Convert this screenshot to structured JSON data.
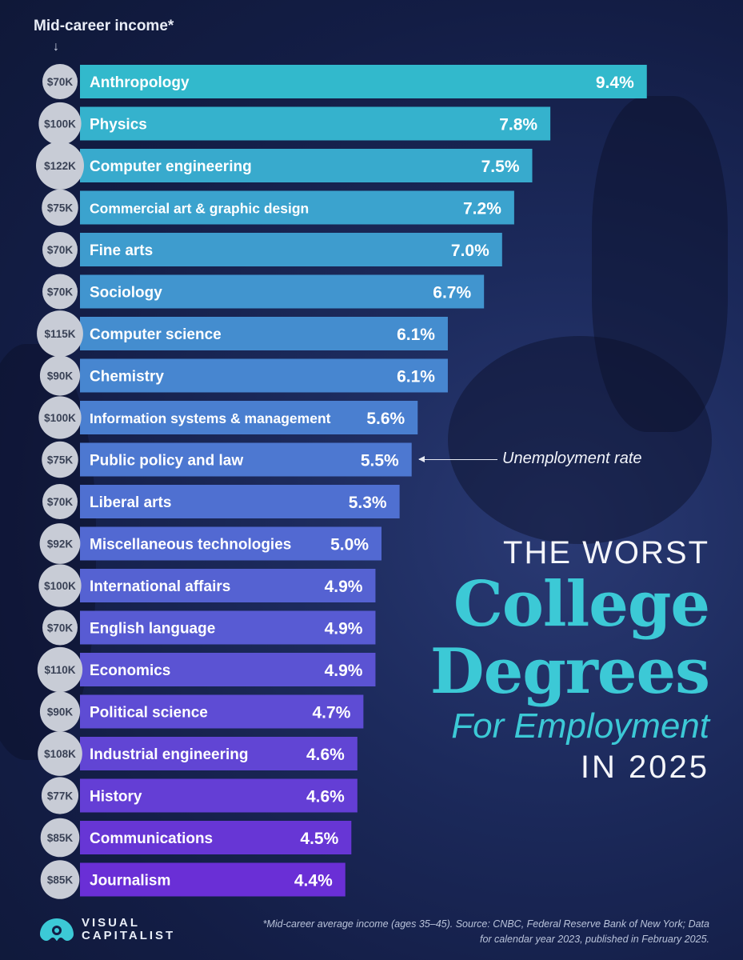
{
  "income_header": "Mid-career income*",
  "income_arrow": "↓",
  "annotation": "Unemployment rate",
  "title": {
    "line1": "THE WORST",
    "line2": "College",
    "line3": "Degrees",
    "line4": "For Employment",
    "line5": "IN 2025"
  },
  "logo": {
    "line1": "VISUAL",
    "line2": "CAPITALIST",
    "icon": "visual-capitalist-logo"
  },
  "footnote": "*Mid-career average income (ages 35–45). Source: CNBC, Federal Reserve Bank of New York; Data for calendar year 2023, published in February 2025.",
  "colors": {
    "bar_top": "#32b9cc",
    "bar_bottom": "#6a2fd6",
    "title_accent": "#3cc9d6",
    "income_circle": "#c8ccd6"
  },
  "chart_data": {
    "type": "bar",
    "orientation": "horizontal",
    "categories": [
      "Anthropology",
      "Physics",
      "Computer engineering",
      "Commercial art & graphic design",
      "Fine arts",
      "Sociology",
      "Computer science",
      "Chemistry",
      "Information systems & management",
      "Public policy and law",
      "Liberal arts",
      "Miscellaneous technologies",
      "International affairs",
      "English language",
      "Economics",
      "Political science",
      "Industrial engineering",
      "History",
      "Communications",
      "Journalism"
    ],
    "values": [
      9.4,
      7.8,
      7.5,
      7.2,
      7.0,
      6.7,
      6.1,
      6.1,
      5.6,
      5.5,
      5.3,
      5.0,
      4.9,
      4.9,
      4.9,
      4.7,
      4.6,
      4.6,
      4.5,
      4.4
    ],
    "value_labels": [
      "9.4%",
      "7.8%",
      "7.5%",
      "7.2%",
      "7.0%",
      "6.7%",
      "6.1%",
      "6.1%",
      "5.6%",
      "5.5%",
      "5.3%",
      "5.0%",
      "4.9%",
      "4.9%",
      "4.9%",
      "4.7%",
      "4.6%",
      "4.6%",
      "4.5%",
      "4.4%"
    ],
    "incomes": [
      "$70K",
      "$100K",
      "$122K",
      "$75K",
      "$70K",
      "$70K",
      "$115K",
      "$90K",
      "$100K",
      "$75K",
      "$70K",
      "$92K",
      "$100K",
      "$70K",
      "$110K",
      "$90K",
      "$108K",
      "$77K",
      "$85K",
      "$85K"
    ],
    "income_values": [
      70,
      100,
      122,
      75,
      70,
      70,
      115,
      90,
      100,
      75,
      70,
      92,
      100,
      70,
      110,
      90,
      108,
      77,
      85,
      85
    ],
    "annotated_category": "Public policy and law",
    "grid": false,
    "legend": "none"
  }
}
